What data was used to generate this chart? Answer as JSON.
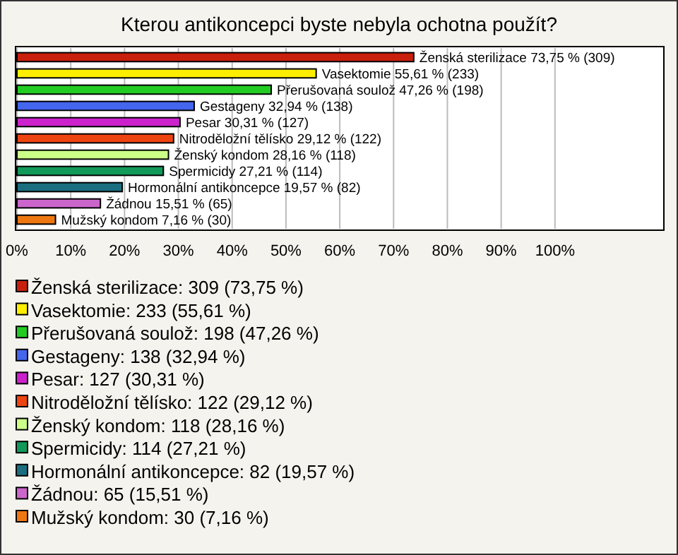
{
  "chart_data": {
    "type": "bar",
    "orientation": "horizontal",
    "title": "Kterou antikoncepci byste nebyla ochotna použít?",
    "categories": [
      "Ženská sterilizace",
      "Vasektomie",
      "Přerušovaná soulož",
      "Gestageny",
      "Pesar",
      "Nitroděložní tělísko",
      "Ženský kondom",
      "Spermicidy",
      "Hormonální antikoncepce",
      "Žádnou",
      "Mužský kondom"
    ],
    "values": [
      73.75,
      55.61,
      47.26,
      32.94,
      30.31,
      29.12,
      28.16,
      27.21,
      19.57,
      15.51,
      7.16
    ],
    "colors": [
      "#c8200c",
      "#ffee00",
      "#22cc22",
      "#4466ee",
      "#cc22cc",
      "#ee4411",
      "#ccff88",
      "#11995a",
      "#1a6e80",
      "#cc66cc",
      "#ee7711"
    ],
    "value_labels": [
      "73,75 % (309)",
      "55,61 % (233)",
      "47,26 % (198)",
      "32,94 % (138)",
      "30,31 % (127)",
      "29,12 % (122)",
      "28,16 % (118)",
      "27,21 % (114)",
      "19,57 % (82)",
      "15,51 % (65)",
      "7,16 % (30)"
    ],
    "xlim": [
      0,
      120.5
    ],
    "xticks": [
      {
        "value": 0,
        "label": "0%"
      },
      {
        "value": 10,
        "label": "10%"
      },
      {
        "value": 20,
        "label": "20%"
      },
      {
        "value": 30,
        "label": "30%"
      },
      {
        "value": 40,
        "label": "40%"
      },
      {
        "value": 50,
        "label": "50%"
      },
      {
        "value": 60,
        "label": "60%"
      },
      {
        "value": 70,
        "label": "70%"
      },
      {
        "value": 80,
        "label": "80%"
      },
      {
        "value": 90,
        "label": "90%"
      },
      {
        "value": 100,
        "label": "100%"
      }
    ],
    "grid": "x",
    "annotations": [
      "Ženská sterilizace: 309 (73,75 %)",
      "Vasektomie: 233 (55,61 %)",
      "Přerušovaná soulož: 198 (47,26 %)",
      "Gestageny: 138 (32,94 %)",
      "Pesar: 127 (30,31 %)",
      "Nitroděložní tělísko: 122 (29,12 %)",
      "Ženský kondom: 118 (28,16 %)",
      "Spermicidy: 114 (27,21 %)",
      "Hormonální antikoncepce: 82 (19,57 %)",
      "Žádnou: 65 (15,51 %)",
      "Mužský kondom: 30 (7,16 %)"
    ]
  }
}
